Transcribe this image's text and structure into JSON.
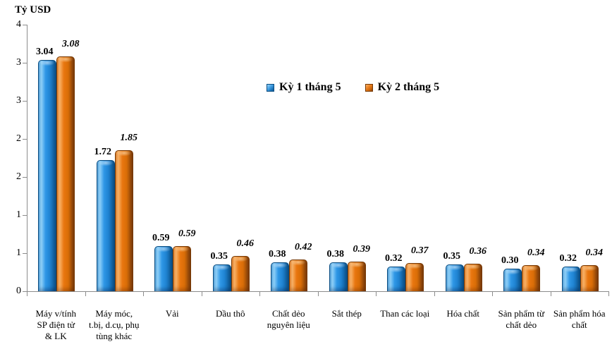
{
  "chart_data": {
    "type": "bar",
    "title": "",
    "ylabel": "Tỷ USD",
    "xlabel": "",
    "grid": false,
    "legend_position": "inside-top-center",
    "bar_style": "3d-bevel",
    "ylim": [
      0,
      3.5
    ],
    "y_tick_step": 0.5,
    "y_tick_labels_top_to_bottom": [
      "4",
      "3",
      "3",
      "2",
      "2",
      "1",
      "1",
      "0"
    ],
    "categories": [
      "Máy v/tính SP điện tử & LK",
      "Máy móc, t.bị, d.cụ, phụ tùng khác",
      "Vải",
      "Dầu thô",
      "Chất dẻo nguyên liệu",
      "Sắt thép",
      "Than các loại",
      "Hóa chất",
      "Sản phẩm từ chất dẻo",
      "Sản phẩm hóa chất"
    ],
    "category_lines": [
      [
        "Máy v/tính",
        "SP điện tử",
        "& LK"
      ],
      [
        "Máy móc,",
        "t.bị, d.cụ, phụ",
        "tùng khác"
      ],
      [
        "Vải"
      ],
      [
        "Dầu thô"
      ],
      [
        "Chất dẻo",
        "nguyên liệu"
      ],
      [
        "Sắt thép"
      ],
      [
        "Than các loại"
      ],
      [
        "Hóa chất"
      ],
      [
        "Sản phẩm từ",
        "chất dẻo"
      ],
      [
        "Sản phẩm hóa",
        "chất"
      ]
    ],
    "series": [
      {
        "name": "Kỳ 1 tháng 5",
        "color": "#2F97E6",
        "label_style": "bold",
        "values": [
          3.04,
          1.72,
          0.59,
          0.35,
          0.38,
          0.38,
          0.32,
          0.35,
          0.3,
          0.32
        ]
      },
      {
        "name": "Kỳ 2 tháng 5",
        "color": "#E9760F",
        "label_style": "bold-italic",
        "values": [
          3.08,
          1.85,
          0.59,
          0.46,
          0.42,
          0.39,
          0.37,
          0.36,
          0.34,
          0.34
        ]
      }
    ],
    "colors": {
      "axis": "#8C8C8C",
      "text": "#000000",
      "series1_border": "#0A4C80",
      "series2_border": "#763803",
      "background": "#FFFFFF"
    }
  }
}
